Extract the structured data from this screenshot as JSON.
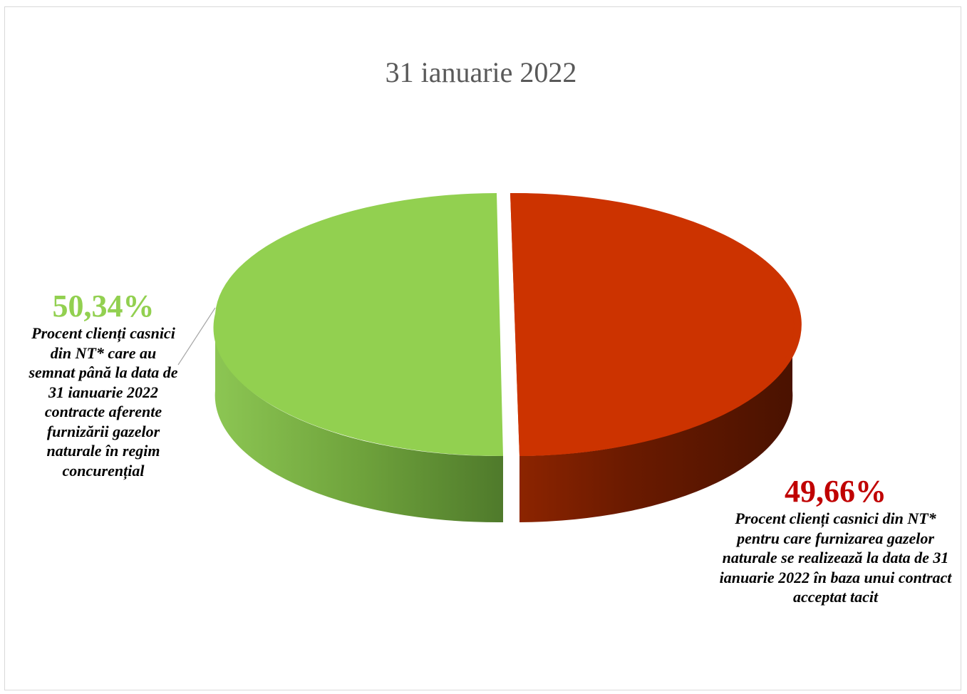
{
  "chart_data": {
    "type": "pie",
    "title": "31 ianuarie 2022",
    "slices": [
      {
        "value": 50.34,
        "value_label": "50,34%",
        "label": "Procent clienți casnici din NT* care au semnat până la data de 31 ianuarie 2022 contracte aferente furnizării gazelor naturale în regim concurențial",
        "color": "#92d050",
        "side_color": "#6e9e3a"
      },
      {
        "value": 49.66,
        "value_label": "49,66%",
        "label": "Procent clienți casnici din NT* pentru care furnizarea gazelor naturale se realizează la data de 31 ianuarie 2022 în baza unui contract acceptat tacit",
        "color": "#cc3300",
        "side_color": "#7a1e00"
      }
    ],
    "legend": "none",
    "style": "3d-exploded"
  }
}
